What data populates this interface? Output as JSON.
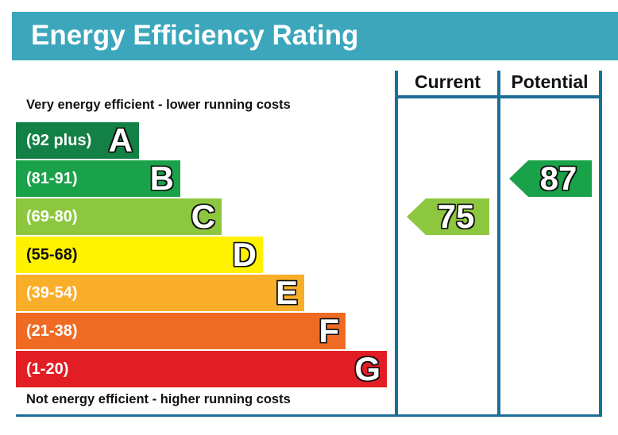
{
  "header": {
    "title": "Energy Efficiency Rating",
    "background": "#3ca6bc"
  },
  "columns": {
    "current": "Current",
    "potential": "Potential"
  },
  "captions": {
    "top": "Very energy efficient - lower running costs",
    "bottom": "Not energy efficient - higher running costs"
  },
  "chart_data": {
    "type": "bar",
    "title": "Energy Efficiency Rating",
    "bands": [
      {
        "letter": "A",
        "range": "(92 plus)",
        "min": 92,
        "max": 100,
        "color": "#138046"
      },
      {
        "letter": "B",
        "range": "(81-91)",
        "min": 81,
        "max": 91,
        "color": "#1aa24a"
      },
      {
        "letter": "C",
        "range": "(69-80)",
        "min": 69,
        "max": 80,
        "color": "#8dc73f"
      },
      {
        "letter": "D",
        "range": "(55-68)",
        "min": 55,
        "max": 68,
        "color": "#fef200"
      },
      {
        "letter": "E",
        "range": "(39-54)",
        "min": 39,
        "max": 54,
        "color": "#f9ae2a"
      },
      {
        "letter": "F",
        "range": "(21-38)",
        "min": 21,
        "max": 38,
        "color": "#ef6b24"
      },
      {
        "letter": "G",
        "range": "(1-20)",
        "min": 1,
        "max": 20,
        "color": "#e31d24"
      }
    ],
    "ratings": [
      {
        "column": "Current",
        "value": 75,
        "band": "C",
        "color": "#8dc73f"
      },
      {
        "column": "Potential",
        "value": 87,
        "band": "B",
        "color": "#1aa24a"
      }
    ]
  }
}
